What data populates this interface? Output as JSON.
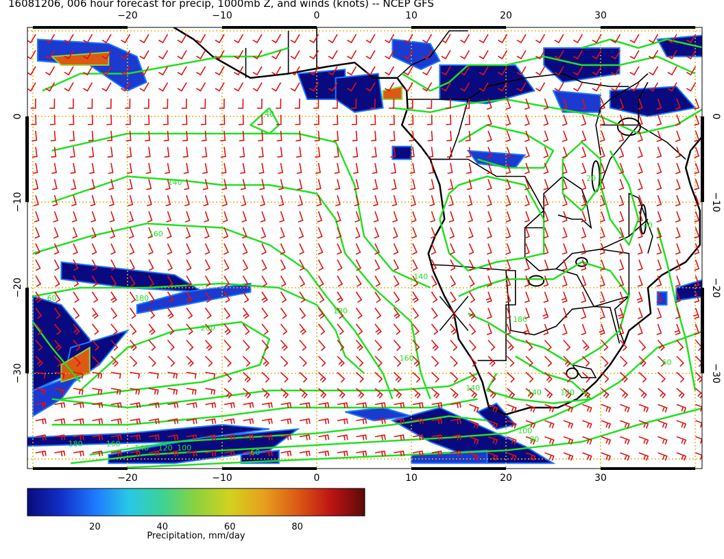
{
  "title": "16081206, 006 hour forecast for precip, 1000mb Z, and winds (knots) -- NCEP GFS",
  "map": {
    "lon_range": [
      -30,
      42
    ],
    "lat_range": [
      -40,
      10
    ],
    "lon_ticks": [
      {
        "value": -20,
        "label": "−20"
      },
      {
        "value": -10,
        "label": "−10"
      },
      {
        "value": 0,
        "label": "0"
      },
      {
        "value": 10,
        "label": "10"
      },
      {
        "value": 20,
        "label": "20"
      },
      {
        "value": 30,
        "label": "30"
      }
    ],
    "lat_ticks": [
      {
        "value": 0,
        "label": "0"
      },
      {
        "value": -10,
        "label": "−10"
      },
      {
        "value": -20,
        "label": "−20"
      },
      {
        "value": -30,
        "label": "−30"
      }
    ],
    "contour_labels": [
      {
        "text": "140",
        "lon": -15,
        "lat": -8
      },
      {
        "text": "160",
        "lon": -17,
        "lat": -14
      },
      {
        "text": "180",
        "lon": -18.5,
        "lat": -21.5
      },
      {
        "text": "200",
        "lon": -11.5,
        "lat": -25
      },
      {
        "text": "180",
        "lon": 2.5,
        "lat": -23
      },
      {
        "text": "160",
        "lon": 9.5,
        "lat": -28.5
      },
      {
        "text": "140",
        "lon": 16.5,
        "lat": -32
      },
      {
        "text": "140",
        "lon": 11,
        "lat": -19
      },
      {
        "text": "180",
        "lon": 21.5,
        "lat": -24
      },
      {
        "text": "140",
        "lon": 23,
        "lat": -32.5
      },
      {
        "text": "100",
        "lon": 22,
        "lat": -37
      },
      {
        "text": "100",
        "lon": 26.5,
        "lat": -32.5
      },
      {
        "text": "80",
        "lon": 23,
        "lat": -38
      },
      {
        "text": "180",
        "lon": -25.5,
        "lat": -38.5
      },
      {
        "text": "160",
        "lon": -21.5,
        "lat": -38.5
      },
      {
        "text": "140",
        "lon": -18.5,
        "lat": -39
      },
      {
        "text": "120",
        "lon": -16,
        "lat": -39
      },
      {
        "text": "100",
        "lon": -14,
        "lat": -39
      },
      {
        "text": "60",
        "lon": -6.5,
        "lat": -39.5
      },
      {
        "text": "40",
        "lon": -5,
        "lat": 0
      },
      {
        "text": "20",
        "lon": 29,
        "lat": -7.5
      },
      {
        "text": "40",
        "lon": 35,
        "lat": -13
      },
      {
        "text": "60",
        "lon": 37,
        "lat": -29
      },
      {
        "text": "60",
        "lon": -28,
        "lat": -21.5
      }
    ]
  },
  "colorbar": {
    "title": "Precipitation, mm/day",
    "range": [
      0,
      100
    ],
    "ticks": [
      {
        "value": 20,
        "label": "20"
      },
      {
        "value": 40,
        "label": "40"
      },
      {
        "value": 60,
        "label": "60"
      },
      {
        "value": 80,
        "label": "80"
      }
    ],
    "colors": [
      "#0a0a7a",
      "#1030c8",
      "#1e78ff",
      "#28c8e6",
      "#3cd296",
      "#8cd23c",
      "#d2d21e",
      "#e6a01e",
      "#dc5a14",
      "#be1414",
      "#5a0a0a"
    ]
  },
  "colors": {
    "contour": "#22e022",
    "wind_barb": "#e01010",
    "grid": "#e8b020",
    "coastline": "#000000"
  }
}
